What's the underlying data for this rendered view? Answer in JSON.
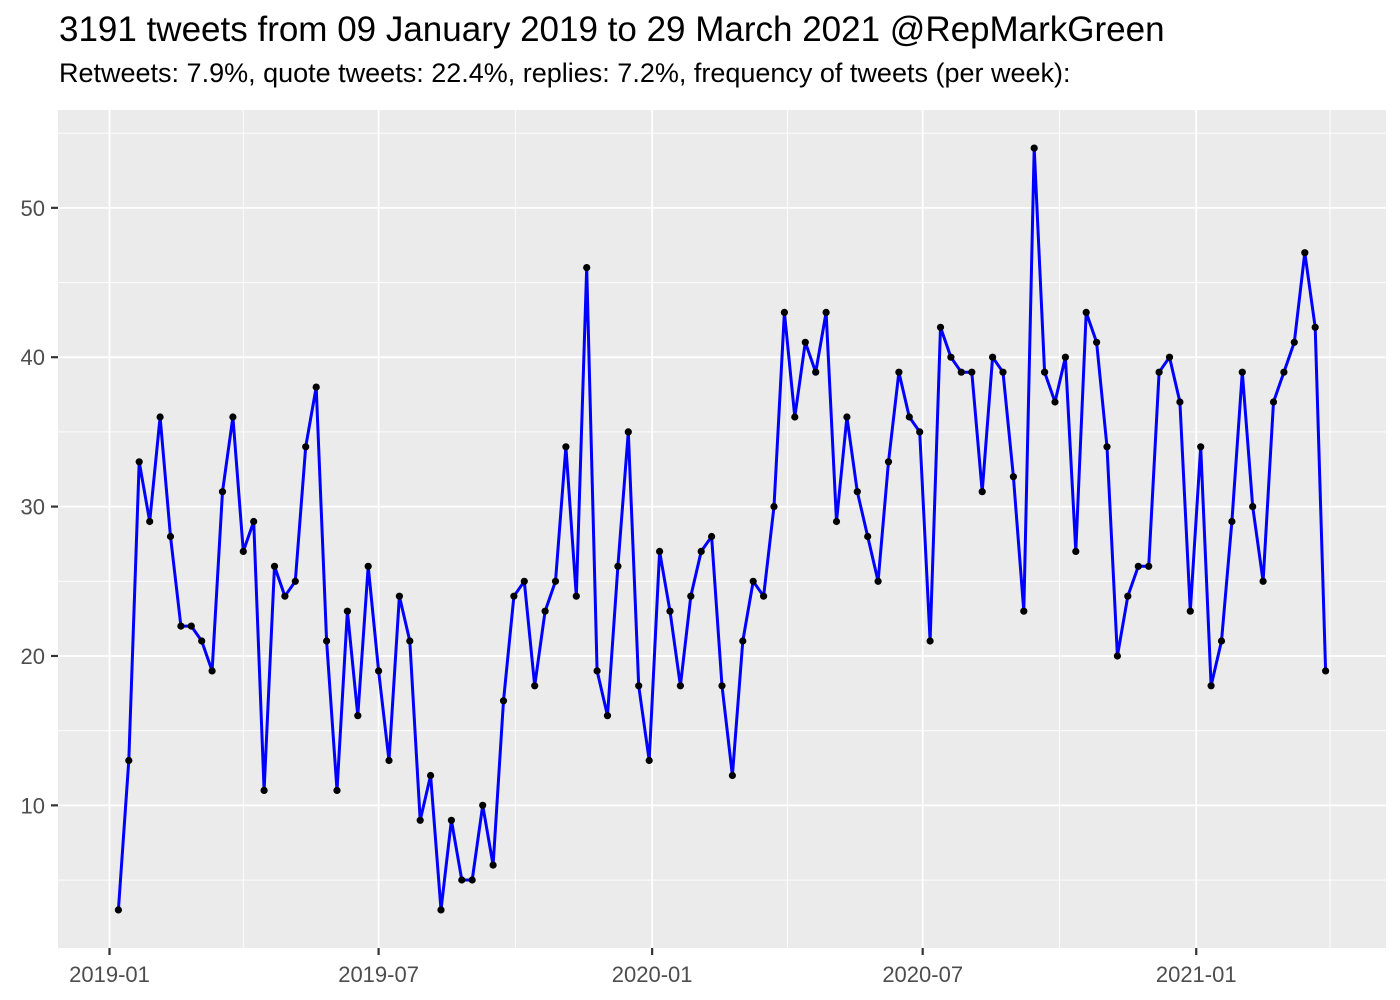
{
  "header": {
    "title": "3191 tweets from 09 January 2019 to 29 March 2021 @RepMarkGreen",
    "subtitle": "Retweets: 7.9%, quote tweets: 22.4%, replies: 7.2%, frequency of tweets (per week):"
  },
  "chart_data": {
    "type": "line",
    "title": "3191 tweets from 09 January 2019 to 29 March 2021 @RepMarkGreen",
    "subtitle": "Retweets: 7.9%, quote tweets: 22.4%, replies: 7.2%, frequency of tweets (per week):",
    "total_tweets": 3191,
    "xlabel": "",
    "ylabel": "",
    "legend": "none",
    "grid": true,
    "x_axis": {
      "start_date": "2019-01-07",
      "step_days": 7,
      "pad_days": 40.65,
      "tick_labels": [
        "2019-01",
        "2019-07",
        "2020-01",
        "2020-07",
        "2021-01"
      ],
      "tick_dates": [
        "2019-01-01",
        "2019-07-01",
        "2020-01-01",
        "2020-07-01",
        "2021-01-01"
      ],
      "minor_tick_dates": [
        "2019-04-01",
        "2019-10-01",
        "2020-04-01",
        "2020-10-01",
        "2021-04-01"
      ]
    },
    "y_axis": {
      "ticks": [
        10,
        20,
        30,
        40,
        50
      ],
      "tick_labels": [
        "10",
        "20",
        "30",
        "40",
        "50"
      ],
      "minor_ticks": [
        5,
        15,
        25,
        35,
        45,
        55
      ],
      "lim": [
        0.45,
        56.55
      ]
    },
    "values": [
      3,
      13,
      33,
      29,
      36,
      28,
      22,
      22,
      21,
      19,
      31,
      36,
      27,
      29,
      11,
      26,
      24,
      25,
      34,
      38,
      21,
      11,
      23,
      16,
      26,
      19,
      13,
      24,
      21,
      9,
      12,
      3,
      9,
      5,
      5,
      10,
      6,
      17,
      24,
      25,
      18,
      23,
      25,
      34,
      24,
      46,
      19,
      16,
      26,
      35,
      18,
      13,
      27,
      23,
      18,
      24,
      27,
      28,
      18,
      12,
      21,
      25,
      24,
      30,
      43,
      36,
      41,
      39,
      43,
      29,
      36,
      31,
      28,
      25,
      33,
      39,
      36,
      35,
      21,
      42,
      40,
      39,
      39,
      31,
      40,
      39,
      32,
      23,
      54,
      39,
      37,
      40,
      27,
      43,
      41,
      34,
      20,
      24,
      26,
      26,
      39,
      40,
      37,
      23,
      34,
      18,
      21,
      29,
      39,
      30,
      25,
      37,
      39,
      41,
      47,
      42,
      19
    ]
  },
  "colors": {
    "background": "#FFFFFF",
    "panel": "#EBEBEB",
    "grid": "#FFFFFF",
    "line": "#0000FF",
    "point": "#000000",
    "tick_mark": "#333333",
    "tick_label": "#4D4D4D",
    "title_text": "#000000"
  }
}
